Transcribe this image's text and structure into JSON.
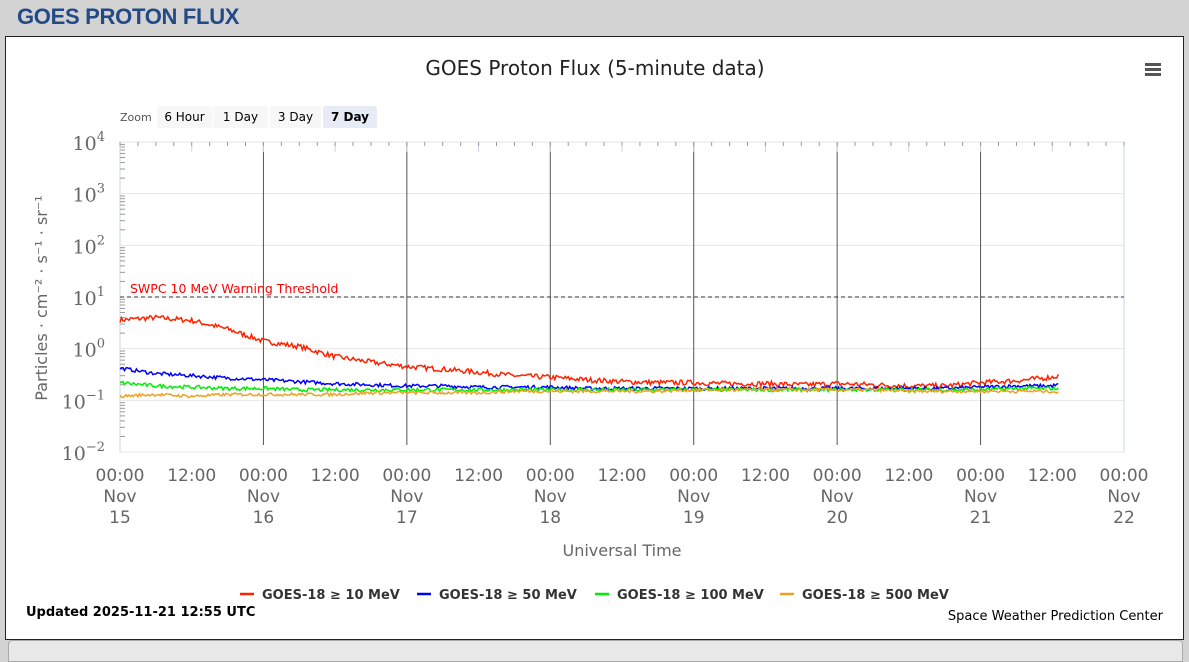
{
  "header": {
    "title": "GOES PROTON FLUX"
  },
  "menu_icon": "hamburger-menu-icon",
  "zoom": {
    "label": "Zoom",
    "buttons": [
      "6 Hour",
      "1 Day",
      "3 Day",
      "7 Day"
    ],
    "selected": "7 Day"
  },
  "footer": {
    "updated": "Updated 2025-11-21 12:55 UTC",
    "credit": "Space Weather Prediction Center"
  },
  "chart_data": {
    "type": "line",
    "title": "GOES Proton Flux (5-minute data)",
    "xlabel": "Universal Time",
    "ylabel": "Particles · cm⁻² · s⁻¹ · sr⁻¹",
    "yscale": "log",
    "ylim": [
      0.01,
      10000
    ],
    "y_ticks": [
      {
        "base": "10",
        "exp": "4"
      },
      {
        "base": "10",
        "exp": "3"
      },
      {
        "base": "10",
        "exp": "2"
      },
      {
        "base": "10",
        "exp": "1"
      },
      {
        "base": "10",
        "exp": "0"
      },
      {
        "base": "10",
        "exp": "−1"
      },
      {
        "base": "10",
        "exp": "−2"
      }
    ],
    "x_unit": "hours since Nov 15 00:00 UTC",
    "xlim": [
      0,
      168
    ],
    "x_ticks": [
      {
        "h": 0,
        "time": "00:00",
        "month": "Nov",
        "day": "15"
      },
      {
        "h": 12,
        "time": "12:00"
      },
      {
        "h": 24,
        "time": "00:00",
        "month": "Nov",
        "day": "16"
      },
      {
        "h": 36,
        "time": "12:00"
      },
      {
        "h": 48,
        "time": "00:00",
        "month": "Nov",
        "day": "17"
      },
      {
        "h": 60,
        "time": "12:00"
      },
      {
        "h": 72,
        "time": "00:00",
        "month": "Nov",
        "day": "18"
      },
      {
        "h": 84,
        "time": "12:00"
      },
      {
        "h": 96,
        "time": "00:00",
        "month": "Nov",
        "day": "19"
      },
      {
        "h": 108,
        "time": "12:00"
      },
      {
        "h": 120,
        "time": "00:00",
        "month": "Nov",
        "day": "20"
      },
      {
        "h": 132,
        "time": "12:00"
      },
      {
        "h": 144,
        "time": "00:00",
        "month": "Nov",
        "day": "21"
      },
      {
        "h": 156,
        "time": "12:00"
      },
      {
        "h": 168,
        "time": "00:00",
        "month": "Nov",
        "day": "22"
      }
    ],
    "threshold": {
      "value": 10,
      "label": "SWPC 10 MeV Warning Threshold",
      "color": "#ff0000"
    },
    "x_hours": [
      0,
      6,
      12,
      18,
      24,
      30,
      36,
      42,
      48,
      54,
      60,
      66,
      72,
      78,
      84,
      90,
      96,
      102,
      108,
      114,
      120,
      126,
      132,
      138,
      144,
      150,
      156,
      157
    ],
    "series": [
      {
        "name": "GOES-18 ≥ 10 MeV",
        "color": "#ff2200",
        "values": [
          3.6,
          4.0,
          3.5,
          2.4,
          1.4,
          1.1,
          0.7,
          0.55,
          0.45,
          0.4,
          0.35,
          0.3,
          0.28,
          0.25,
          0.23,
          0.22,
          0.22,
          0.21,
          0.21,
          0.2,
          0.21,
          0.2,
          0.19,
          0.19,
          0.22,
          0.24,
          0.28,
          0.3
        ]
      },
      {
        "name": "GOES-18 ≥ 50 MeV",
        "color": "#0000ff",
        "values": [
          0.42,
          0.33,
          0.3,
          0.27,
          0.25,
          0.23,
          0.21,
          0.2,
          0.19,
          0.19,
          0.18,
          0.18,
          0.18,
          0.17,
          0.17,
          0.17,
          0.17,
          0.17,
          0.17,
          0.17,
          0.17,
          0.17,
          0.17,
          0.17,
          0.18,
          0.19,
          0.19,
          0.2
        ]
      },
      {
        "name": "GOES-18 ≥ 100 MeV",
        "color": "#00ee00",
        "values": [
          0.22,
          0.19,
          0.18,
          0.17,
          0.17,
          0.16,
          0.16,
          0.16,
          0.16,
          0.16,
          0.16,
          0.16,
          0.16,
          0.16,
          0.16,
          0.16,
          0.16,
          0.16,
          0.16,
          0.16,
          0.16,
          0.16,
          0.16,
          0.16,
          0.16,
          0.17,
          0.17,
          0.17
        ]
      },
      {
        "name": "GOES-18 ≥ 500 MeV",
        "color": "#f0a020",
        "values": [
          0.12,
          0.13,
          0.12,
          0.13,
          0.13,
          0.13,
          0.13,
          0.14,
          0.14,
          0.14,
          0.14,
          0.15,
          0.15,
          0.15,
          0.15,
          0.15,
          0.16,
          0.16,
          0.16,
          0.16,
          0.16,
          0.16,
          0.15,
          0.15,
          0.15,
          0.15,
          0.15,
          0.14
        ]
      }
    ]
  }
}
